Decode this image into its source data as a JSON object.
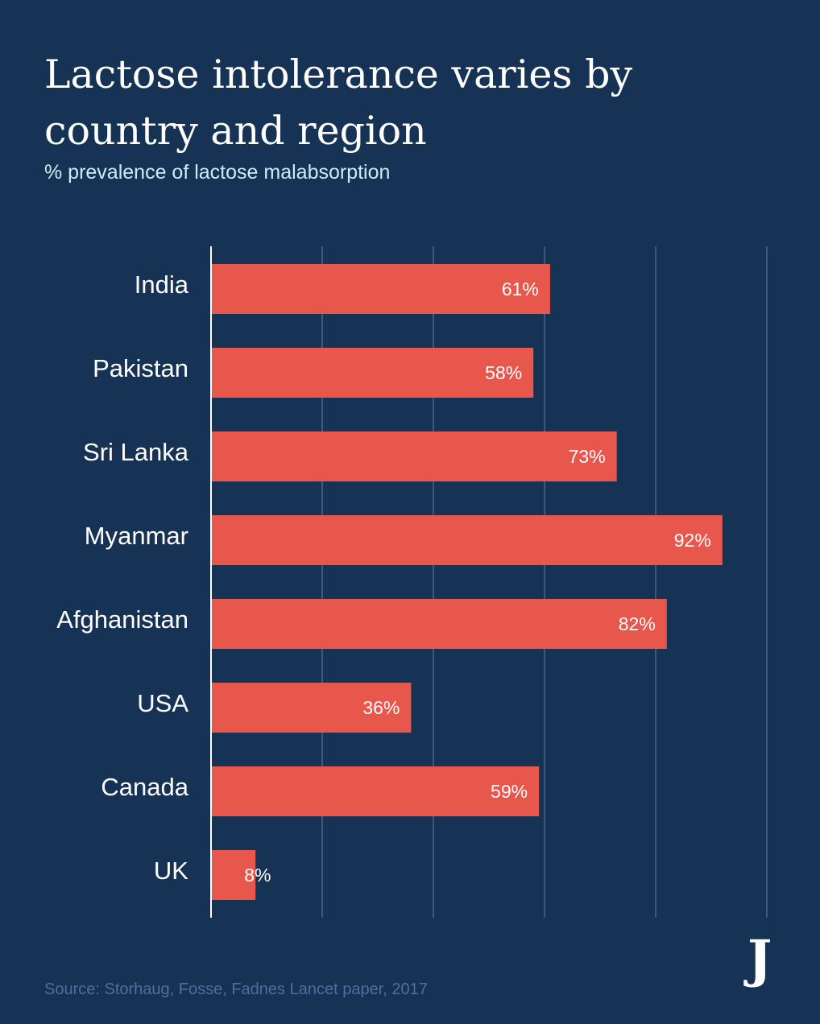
{
  "title": "Lactose intolerance varies by country and region",
  "subtitle": "% prevalence of lactose malabsorption",
  "source": "Source:  Storhaug, Fosse, Fadnes Lancet paper, 2017",
  "logo": "J",
  "colors": {
    "background": "#163254",
    "bar": "#e8574c",
    "gridline": "#4a6485",
    "axis": "#ffffff",
    "subtitle": "#cdebf5",
    "source": "#4f6f9a"
  },
  "chart_data": {
    "type": "bar",
    "orientation": "horizontal",
    "title": "Lactose intolerance varies by country and region",
    "subtitle": "% prevalence of lactose malabsorption",
    "categories": [
      "India",
      "Pakistan",
      "Sri Lanka",
      "Myanmar",
      "Afghanistan",
      "USA",
      "Canada",
      "UK"
    ],
    "values": [
      61,
      58,
      73,
      92,
      82,
      36,
      59,
      8
    ],
    "labels": [
      "61%",
      "58%",
      "73%",
      "92%",
      "82%",
      "36%",
      "59%",
      "8%"
    ],
    "xlim": [
      0,
      100
    ],
    "gridlines": [
      20,
      40,
      60,
      80,
      100
    ],
    "xlabel": "",
    "ylabel": ""
  }
}
